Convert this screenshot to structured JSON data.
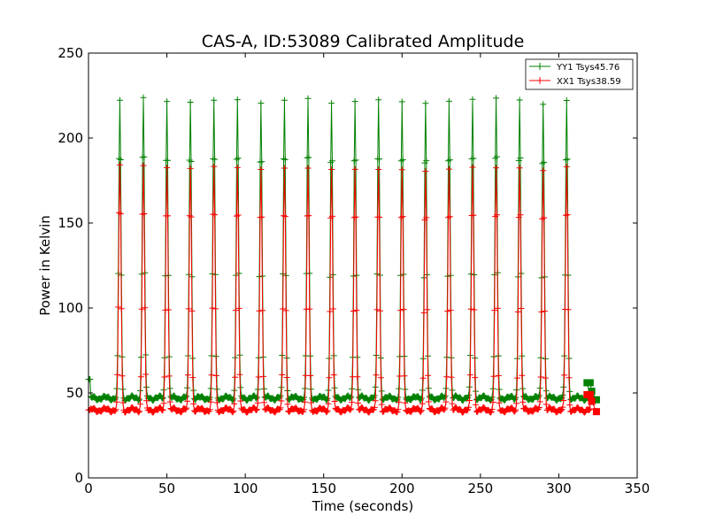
{
  "chart_data": {
    "type": "line",
    "title": "CAS-A, ID:53089 Calibrated Amplitude",
    "xlabel": "Time (seconds)",
    "ylabel": "Power in Kelvin",
    "xlim": [
      0,
      350
    ],
    "ylim": [
      0,
      250
    ],
    "xticks": [
      0,
      50,
      100,
      150,
      200,
      250,
      300,
      350
    ],
    "yticks": [
      0,
      50,
      100,
      150,
      200,
      250
    ],
    "grid": false,
    "legend_position": "top-right",
    "baseline_x": [
      0,
      320
    ],
    "peak_times": [
      20,
      35,
      50,
      65,
      80,
      95,
      110,
      125,
      140,
      155,
      170,
      185,
      200,
      215,
      230,
      245,
      260,
      275,
      290,
      305
    ],
    "series": [
      {
        "name": "YY1 Tsys45.76",
        "color": "#008000",
        "marker": "+",
        "baseline": 47,
        "start_value": 58,
        "peak_values": [
          222,
          224,
          223,
          222,
          222,
          223,
          222,
          223,
          223,
          221,
          223,
          223,
          221,
          221,
          223,
          223,
          223,
          223,
          221,
          222
        ],
        "tail": [
          {
            "x": 318,
            "y": 56
          },
          {
            "x": 320,
            "y": 56
          },
          {
            "x": 321,
            "y": 51
          },
          {
            "x": 324,
            "y": 46
          }
        ]
      },
      {
        "name": "XX1 Tsys38.59",
        "color": "#ff0000",
        "marker": "+",
        "baseline": 40,
        "start_value": 40,
        "peak_values": [
          184,
          184,
          184,
          183,
          183,
          183,
          183,
          183,
          182,
          182,
          183,
          182,
          181,
          181,
          183,
          183,
          182,
          183,
          182,
          183
        ],
        "tail": [
          {
            "x": 318,
            "y": 49
          },
          {
            "x": 320,
            "y": 49
          },
          {
            "x": 321,
            "y": 45
          },
          {
            "x": 324,
            "y": 39
          }
        ]
      }
    ]
  }
}
